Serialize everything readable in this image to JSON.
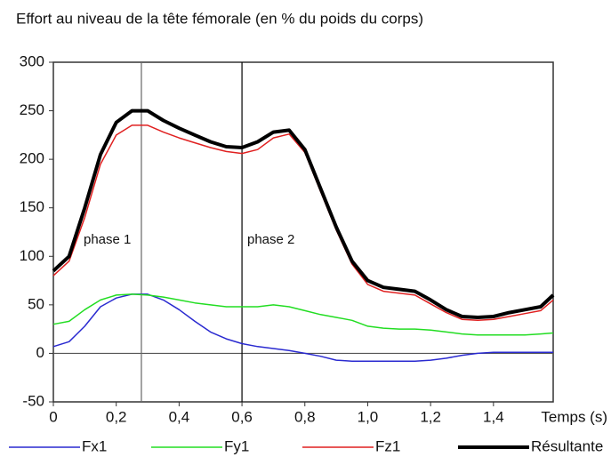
{
  "chart_data": {
    "type": "line",
    "title": "Effort au niveau de la tête fémorale (en % du poids du corps)",
    "x_label": "Temps (s)",
    "x": [
      0,
      0.05,
      0.1,
      0.15,
      0.2,
      0.25,
      0.3,
      0.35,
      0.4,
      0.45,
      0.5,
      0.55,
      0.6,
      0.65,
      0.7,
      0.75,
      0.8,
      0.85,
      0.9,
      0.95,
      1.0,
      1.05,
      1.1,
      1.15,
      1.2,
      1.25,
      1.3,
      1.35,
      1.4,
      1.45,
      1.5,
      1.55,
      1.59
    ],
    "series": [
      {
        "name": "Fx1",
        "color": "#2a2ad0",
        "width": 1.5,
        "values": [
          7,
          12,
          28,
          48,
          57,
          61,
          61,
          55,
          45,
          33,
          22,
          15,
          10,
          7,
          5,
          3,
          0,
          -3,
          -7,
          -8,
          -8,
          -8,
          -8,
          -8,
          -7,
          -5,
          -2,
          0,
          1,
          1,
          1,
          1,
          1
        ]
      },
      {
        "name": "Fy1",
        "color": "#22dd22",
        "width": 1.5,
        "values": [
          30,
          33,
          45,
          55,
          60,
          61,
          60,
          58,
          55,
          52,
          50,
          48,
          48,
          48,
          50,
          48,
          44,
          40,
          37,
          34,
          28,
          26,
          25,
          25,
          24,
          22,
          20,
          19,
          19,
          19,
          19,
          20,
          21
        ]
      },
      {
        "name": "Fz1",
        "color": "#e02020",
        "width": 1.5,
        "values": [
          80,
          95,
          140,
          195,
          225,
          235,
          235,
          228,
          222,
          217,
          212,
          208,
          206,
          210,
          222,
          226,
          207,
          167,
          127,
          92,
          71,
          64,
          62,
          60,
          51,
          42,
          35,
          34,
          35,
          38,
          41,
          44,
          55
        ]
      },
      {
        "name": "Résultante",
        "color": "#000000",
        "width": 4,
        "values": [
          85,
          100,
          150,
          205,
          238,
          250,
          250,
          240,
          232,
          225,
          218,
          213,
          212,
          218,
          228,
          230,
          210,
          170,
          130,
          95,
          75,
          68,
          66,
          64,
          55,
          45,
          38,
          37,
          38,
          42,
          45,
          48,
          60
        ]
      }
    ],
    "xlim": [
      0,
      1.59
    ],
    "ylim": [
      -50,
      300
    ],
    "xticks": [
      0,
      {
        "value": 0.2,
        "label": "0,2"
      },
      {
        "value": 0.4,
        "label": "0,4"
      },
      {
        "value": 0.6,
        "label": "0,6"
      },
      {
        "value": 0.8,
        "label": "0,8"
      },
      {
        "value": 1.0,
        "label": "1,0"
      },
      {
        "value": 1.2,
        "label": "1,2"
      },
      {
        "value": 1.4,
        "label": "1,4"
      }
    ],
    "yticks": [
      -50,
      0,
      50,
      100,
      150,
      200,
      250,
      300
    ],
    "vlines": [
      0.28,
      0.6
    ],
    "annotations": [
      "phase 1",
      "phase 2"
    ]
  }
}
